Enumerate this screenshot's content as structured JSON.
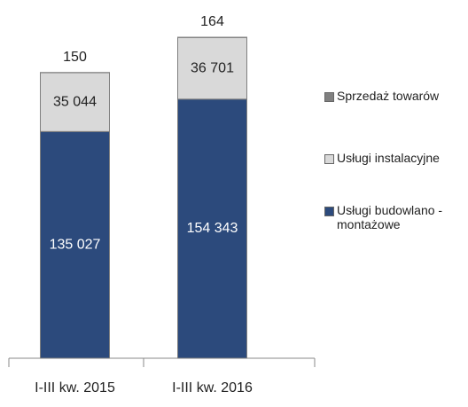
{
  "chart_data": {
    "type": "bar",
    "stacked": true,
    "categories": [
      "I-III kw. 2015",
      "I-III kw. 2016"
    ],
    "series": [
      {
        "name": "Usługi budowlano - montażowe",
        "color": "#2c4a7c",
        "values": [
          135027,
          154343
        ],
        "value_labels": [
          "135 027",
          "154 343"
        ]
      },
      {
        "name": "Usługi instalacyjne",
        "color": "#d9d9d9",
        "values": [
          35044,
          36701
        ],
        "value_labels": [
          "35 044",
          "36 701"
        ]
      },
      {
        "name": "Sprzedaż towarów",
        "color": "#808080",
        "values": [
          150,
          164
        ]
      }
    ]
  }
}
